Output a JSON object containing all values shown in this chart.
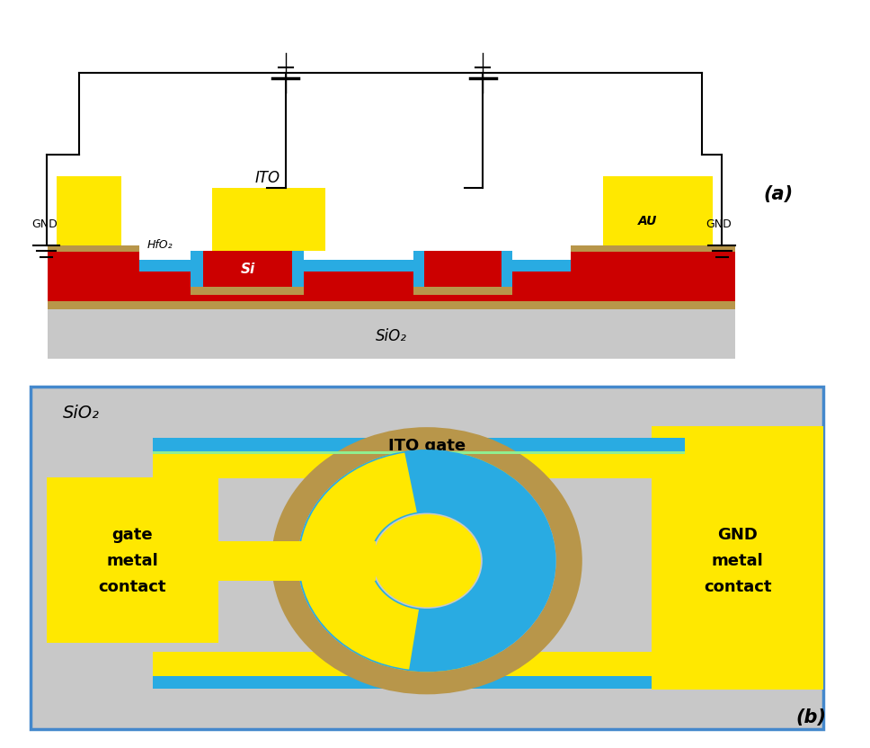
{
  "colors": {
    "yellow": "#FFE800",
    "red": "#CC0000",
    "blue": "#29ABE2",
    "brown": "#B8964A",
    "gray": "#C8C8C8",
    "white": "#FFFFFF",
    "black": "#000000",
    "box_border": "#4488CC",
    "green_thin": "#90EE90"
  },
  "panel_a_label": "(a)",
  "panel_b_label": "(b)",
  "sio2_label": "SiO₂",
  "si_label": "Si",
  "ito_label": "ITO",
  "hfo2_label": "HfO₂",
  "au_label": "AU",
  "gnd_label": "GND",
  "ito_gate_label": "ITO gate",
  "gate_metal_label": "gate\nmetal\ncontact",
  "gnd_metal_label": "GND\nmetal\ncontact"
}
